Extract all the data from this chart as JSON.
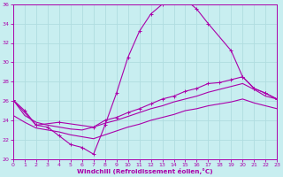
{
  "xlabel": "Windchill (Refroidissement éolien,°C)",
  "xlim": [
    0,
    23
  ],
  "ylim": [
    20,
    36
  ],
  "xticks": [
    0,
    1,
    2,
    3,
    4,
    5,
    6,
    7,
    8,
    9,
    10,
    11,
    12,
    13,
    14,
    15,
    16,
    17,
    18,
    19,
    20,
    21,
    22,
    23
  ],
  "yticks": [
    20,
    22,
    24,
    26,
    28,
    30,
    32,
    34,
    36
  ],
  "background_color": "#c8eef0",
  "line_color": "#aa00aa",
  "grid_color": "#b0dde0",
  "line1_x": [
    0,
    1,
    2,
    3,
    4,
    5,
    6,
    7,
    8,
    9,
    10,
    11,
    12,
    13,
    14,
    15,
    16,
    17,
    19,
    20,
    21,
    22,
    23
  ],
  "line1_y": [
    26.1,
    25.0,
    23.5,
    23.3,
    22.4,
    21.5,
    21.2,
    20.5,
    23.5,
    26.8,
    30.5,
    33.2,
    35.0,
    36.0,
    36.2,
    36.5,
    35.5,
    34.0,
    31.2,
    28.5,
    27.3,
    26.8,
    26.2
  ],
  "line2_x": [
    0,
    2,
    4,
    7,
    8,
    9,
    10,
    11,
    12,
    13,
    14,
    15,
    16,
    17,
    18,
    19,
    20,
    21,
    22,
    23
  ],
  "line2_y": [
    26.1,
    23.5,
    23.8,
    23.3,
    24.0,
    24.3,
    24.8,
    25.2,
    25.7,
    26.2,
    26.5,
    27.0,
    27.3,
    27.8,
    27.9,
    28.2,
    28.5,
    27.3,
    26.8,
    26.2
  ],
  "line3_x": [
    0,
    1,
    2,
    3,
    4,
    5,
    6,
    7,
    8,
    9,
    10,
    11,
    12,
    13,
    14,
    15,
    16,
    17,
    18,
    19,
    20,
    21,
    22,
    23
  ],
  "line3_y": [
    26.1,
    24.5,
    23.8,
    23.5,
    23.3,
    23.1,
    23.0,
    23.3,
    23.7,
    24.0,
    24.4,
    24.8,
    25.2,
    25.5,
    25.9,
    26.2,
    26.5,
    26.9,
    27.2,
    27.5,
    27.8,
    27.2,
    26.5,
    26.2
  ],
  "line4_x": [
    0,
    1,
    2,
    3,
    4,
    5,
    6,
    7,
    8,
    9,
    10,
    11,
    12,
    13,
    14,
    15,
    16,
    17,
    18,
    19,
    20,
    21,
    22,
    23
  ],
  "line4_y": [
    24.5,
    23.8,
    23.2,
    23.0,
    22.8,
    22.5,
    22.3,
    22.1,
    22.5,
    22.9,
    23.3,
    23.6,
    24.0,
    24.3,
    24.6,
    25.0,
    25.2,
    25.5,
    25.7,
    25.9,
    26.2,
    25.8,
    25.5,
    25.2
  ]
}
